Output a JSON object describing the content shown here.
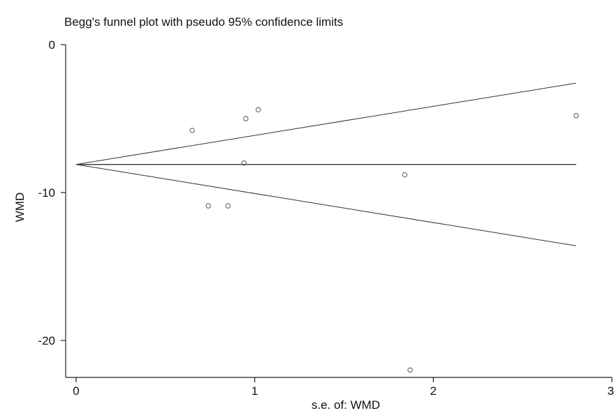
{
  "chart_data": {
    "type": "scatter",
    "title": "Begg's funnel plot with pseudo 95% confidence limits",
    "xlabel": "s.e. of: WMD",
    "ylabel": "WMD",
    "xlim": [
      0,
      3
    ],
    "ylim": [
      -22.5,
      0
    ],
    "xticks": [
      0,
      1,
      2,
      3
    ],
    "yticks": [
      0,
      -10,
      -20
    ],
    "grid": false,
    "legend": "none",
    "points": [
      {
        "x": 0.65,
        "y": -5.8
      },
      {
        "x": 0.95,
        "y": -5.0
      },
      {
        "x": 1.02,
        "y": -4.4
      },
      {
        "x": 0.94,
        "y": -8.0
      },
      {
        "x": 0.74,
        "y": -10.9
      },
      {
        "x": 0.85,
        "y": -10.9
      },
      {
        "x": 1.84,
        "y": -8.8
      },
      {
        "x": 1.87,
        "y": -22.0
      },
      {
        "x": 2.8,
        "y": -4.8
      }
    ],
    "pooled_estimate": -8.1,
    "pooled_line_x": [
      0,
      2.8
    ],
    "ci_upper": {
      "x": [
        0,
        2.8
      ],
      "y": [
        -8.1,
        -2.6
      ]
    },
    "ci_lower": {
      "x": [
        0,
        2.8
      ],
      "y": [
        -8.1,
        -13.6
      ]
    }
  }
}
